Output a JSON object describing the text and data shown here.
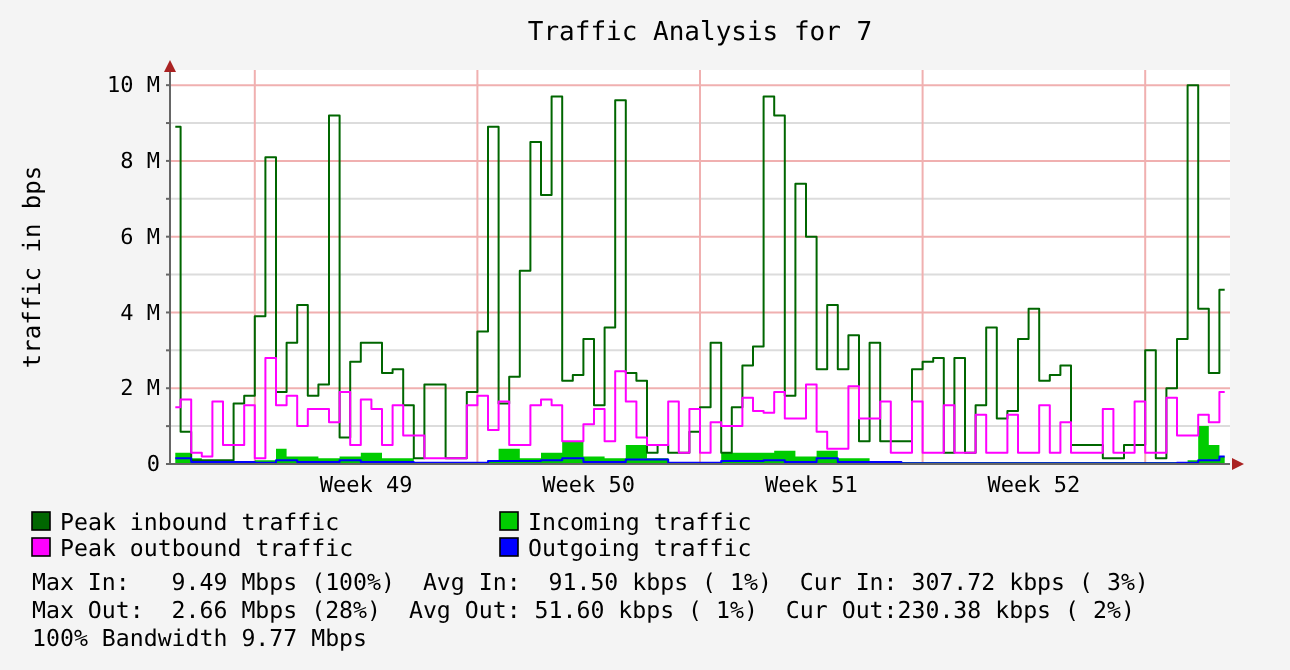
{
  "chart_data": {
    "type": "step",
    "title": "Traffic Analysis for 7",
    "ylabel": "traffic in bps",
    "categories": [
      null,
      null,
      null,
      null,
      null,
      null,
      null,
      null,
      null,
      null,
      null,
      null,
      null,
      null,
      null,
      null,
      null,
      null,
      "Week 49",
      null,
      null,
      null,
      null,
      null,
      null,
      null,
      null,
      null,
      null,
      null,
      null,
      null,
      null,
      null,
      null,
      null,
      null,
      null,
      null,
      "Week 50",
      null,
      null,
      null,
      null,
      null,
      null,
      null,
      null,
      null,
      null,
      null,
      null,
      null,
      null,
      null,
      null,
      null,
      null,
      null,
      null,
      "Week 51",
      null,
      null,
      null,
      null,
      null,
      null,
      null,
      null,
      null,
      null,
      null,
      null,
      null,
      null,
      null,
      null,
      null,
      null,
      null,
      null,
      "Week 52",
      null,
      null,
      null,
      null,
      null,
      null,
      null,
      null,
      null,
      null,
      null,
      null,
      null,
      null,
      null,
      null,
      null,
      null
    ],
    "ylim": [
      0,
      10.4
    ],
    "yticks": [
      {
        "value": 0,
        "label": "0"
      },
      {
        "value": 1,
        "label": null
      },
      {
        "value": 2,
        "label": "2 M"
      },
      {
        "value": 3,
        "label": null
      },
      {
        "value": 4,
        "label": "4 M"
      },
      {
        "value": 5,
        "label": null
      },
      {
        "value": 6,
        "label": "6 M"
      },
      {
        "value": 7,
        "label": null
      },
      {
        "value": 8,
        "label": "8 M"
      },
      {
        "value": 9,
        "label": null
      },
      {
        "value": 10,
        "label": "10 M"
      }
    ],
    "grid": true,
    "legend": "bottom",
    "series": [
      {
        "name": "Peak inbound traffic",
        "color": "#006600",
        "values": [
          8.9,
          0.85,
          0.1,
          0.1,
          0.1,
          0.1,
          1.6,
          1.8,
          3.9,
          8.1,
          1.9,
          3.2,
          4.2,
          1.8,
          2.1,
          9.2,
          0.7,
          2.7,
          3.2,
          3.2,
          2.4,
          2.5,
          1.55,
          0.15,
          2.1,
          2.1,
          0.15,
          0.15,
          1.9,
          3.5,
          8.9,
          1.6,
          2.3,
          5.1,
          8.5,
          7.1,
          9.7,
          2.2,
          2.35,
          3.3,
          1.55,
          3.6,
          9.6,
          2.4,
          2.2,
          0.3,
          0.5,
          0.3,
          0.3,
          0.85,
          1.5,
          3.2,
          0.3,
          1.5,
          2.6,
          3.1,
          9.7,
          9.2,
          1.8,
          7.4,
          6.0,
          2.5,
          4.2,
          2.5,
          3.4,
          0.6,
          3.2,
          0.6,
          0.6,
          0.6,
          2.5,
          2.7,
          2.8,
          0.3,
          2.8,
          0.3,
          1.55,
          3.6,
          1.2,
          1.4,
          3.3,
          4.1,
          2.2,
          2.35,
          2.6,
          0.5,
          0.5,
          0.5,
          0.15,
          0.15,
          0.5,
          0.5,
          3.0,
          0.15,
          2.0,
          3.3,
          10.0,
          4.1,
          2.4,
          4.6
        ]
      },
      {
        "name": "Incoming traffic",
        "color": "#00cc00",
        "type": "area",
        "values": [
          0.3,
          0.3,
          0.15,
          0.05,
          0.05,
          0.05,
          0.05,
          0.05,
          0.1,
          0.1,
          0.4,
          0.2,
          0.2,
          0.2,
          0.15,
          0.15,
          0.2,
          0.2,
          0.3,
          0.3,
          0.15,
          0.15,
          0.15,
          0.05,
          0.05,
          0.05,
          0.05,
          0.05,
          0.05,
          0.05,
          0.05,
          0.4,
          0.4,
          0.15,
          0.15,
          0.3,
          0.3,
          0.6,
          0.6,
          0.2,
          0.2,
          0.15,
          0.15,
          0.5,
          0.5,
          0.15,
          0.15,
          0.05,
          0.05,
          0.05,
          0.05,
          0.05,
          0.3,
          0.3,
          0.3,
          0.3,
          0.3,
          0.35,
          0.35,
          0.2,
          0.2,
          0.35,
          0.35,
          0.15,
          0.15,
          0.15,
          0.05,
          0.05,
          0.05,
          0.05,
          0.05,
          0.05,
          0.05,
          0.05,
          0.05,
          0.05,
          0.05,
          0.05,
          0.05,
          0.05,
          0.05,
          0.05,
          0.05,
          0.05,
          0.05,
          0.05,
          0.05,
          0.05,
          0.05,
          0.05,
          0.05,
          0.05,
          0.05,
          0.05,
          0.05,
          0.05,
          0.1,
          1.0,
          0.5,
          0.2
        ]
      },
      {
        "name": "Peak outbound traffic",
        "color": "#ff00ff",
        "values": [
          1.5,
          1.7,
          0.3,
          0.2,
          1.65,
          0.5,
          0.5,
          1.55,
          0.15,
          2.8,
          1.55,
          1.8,
          1.0,
          1.45,
          1.45,
          1.1,
          1.9,
          0.5,
          1.7,
          1.45,
          0.5,
          1.55,
          0.75,
          0.75,
          0.15,
          0.15,
          0.15,
          0.15,
          1.55,
          1.8,
          0.9,
          1.65,
          0.5,
          0.5,
          1.55,
          1.7,
          1.55,
          0.6,
          0.6,
          1.05,
          1.45,
          0.6,
          2.45,
          1.65,
          0.7,
          0.5,
          0.5,
          1.65,
          0.3,
          1.45,
          0.3,
          1.1,
          1.0,
          1.0,
          1.75,
          1.4,
          1.35,
          1.9,
          1.2,
          1.2,
          2.1,
          0.85,
          0.4,
          0.4,
          2.05,
          1.2,
          1.2,
          1.65,
          0.3,
          0.3,
          1.65,
          0.3,
          0.3,
          1.55,
          0.3,
          0.3,
          1.3,
          0.3,
          0.3,
          1.3,
          0.3,
          0.3,
          1.55,
          0.3,
          1.1,
          0.3,
          0.3,
          0.3,
          1.45,
          0.3,
          0.3,
          1.65,
          0.3,
          0.3,
          1.75,
          0.75,
          0.75,
          1.3,
          1.1,
          1.9
        ]
      },
      {
        "name": "Outgoing traffic",
        "color": "#0000ff",
        "values": [
          0.15,
          0.15,
          0.05,
          0.05,
          0.05,
          0.05,
          0.05,
          0.05,
          0.03,
          0.03,
          0.1,
          0.1,
          0.05,
          0.05,
          0.05,
          0.05,
          0.1,
          0.1,
          0.05,
          0.05,
          0.05,
          0.05,
          0.05,
          0.03,
          0.03,
          0.03,
          0.03,
          0.03,
          0.03,
          0.03,
          0.08,
          0.08,
          0.08,
          0.08,
          0.08,
          0.1,
          0.1,
          0.15,
          0.15,
          0.05,
          0.05,
          0.05,
          0.05,
          0.12,
          0.12,
          0.12,
          0.12,
          0.03,
          0.03,
          0.03,
          0.03,
          0.03,
          0.08,
          0.08,
          0.08,
          0.08,
          0.1,
          0.1,
          0.05,
          0.05,
          0.05,
          0.15,
          0.15,
          0.05,
          0.05,
          0.05,
          0.05,
          0.05,
          0.05,
          0.02,
          0.02,
          0.02,
          0.02,
          0.02,
          0.02,
          0.02,
          0.02,
          0.02,
          0.02,
          0.02,
          0.02,
          0.02,
          0.02,
          0.02,
          0.02,
          0.02,
          0.02,
          0.02,
          0.02,
          0.02,
          0.02,
          0.02,
          0.02,
          0.02,
          0.02,
          0.03,
          0.03,
          0.1,
          0.1,
          0.2
        ]
      }
    ],
    "annotations": [
      "Max In:   9.49 Mbps (100%)  Avg In:  91.50 kbps ( 1%)  Cur In: 307.72 kbps ( 3%)",
      "Max Out:  2.66 Mbps (28%)  Avg Out: 51.60 kbps ( 1%)  Cur Out:230.38 kbps ( 2%)",
      "100% Bandwidth 9.77 Mbps"
    ]
  }
}
